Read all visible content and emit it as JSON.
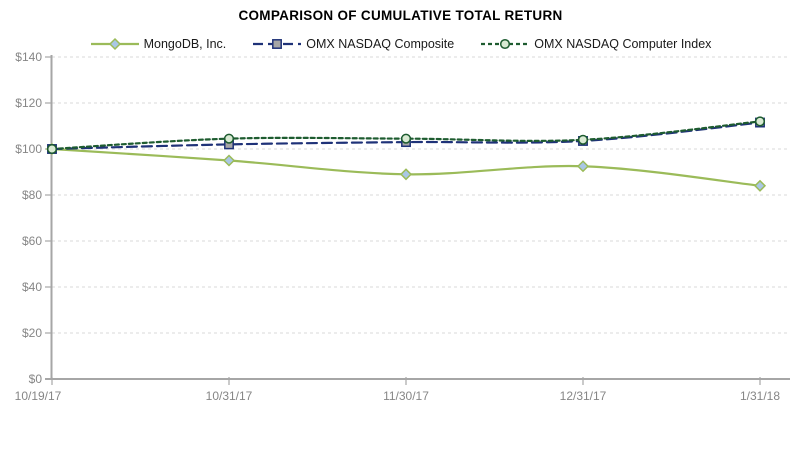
{
  "chart_data": {
    "type": "line",
    "title": "COMPARISON OF CUMULATIVE TOTAL RETURN",
    "categories": [
      "10/19/17",
      "10/31/17",
      "11/30/17",
      "12/31/17",
      "1/31/18"
    ],
    "series": [
      {
        "name": "MongoDB, Inc.",
        "values": [
          100,
          95,
          89,
          92.5,
          84
        ],
        "color": "#9bbb59",
        "marker": "diamond",
        "marker_fill": "#a9c7e4",
        "line_style": "solid"
      },
      {
        "name": "OMX NASDAQ Composite",
        "values": [
          100,
          102,
          103,
          103.5,
          111.5
        ],
        "color": "#1f3278",
        "marker": "square",
        "marker_fill": "#a6a6a6",
        "line_style": "dashed-long"
      },
      {
        "name": "OMX NASDAQ Computer Index",
        "values": [
          100,
          104.5,
          104.5,
          104,
          112
        ],
        "color": "#1e5c30",
        "marker": "circle",
        "marker_fill": "#d9ead3",
        "line_style": "dashed-short"
      }
    ],
    "ylim": [
      0,
      140
    ],
    "ytick_step": 20,
    "ytick_labels": [
      "$0",
      "$20",
      "$40",
      "$60",
      "$80",
      "$100",
      "$120",
      "$140"
    ],
    "grid": "horizontal-dashed",
    "legend_position": "top",
    "colors": {
      "grid": "#d9d9d9",
      "axis": "#a6a6a6",
      "tick_label": "#868686",
      "title": "#000000",
      "background": "#ffffff"
    }
  }
}
